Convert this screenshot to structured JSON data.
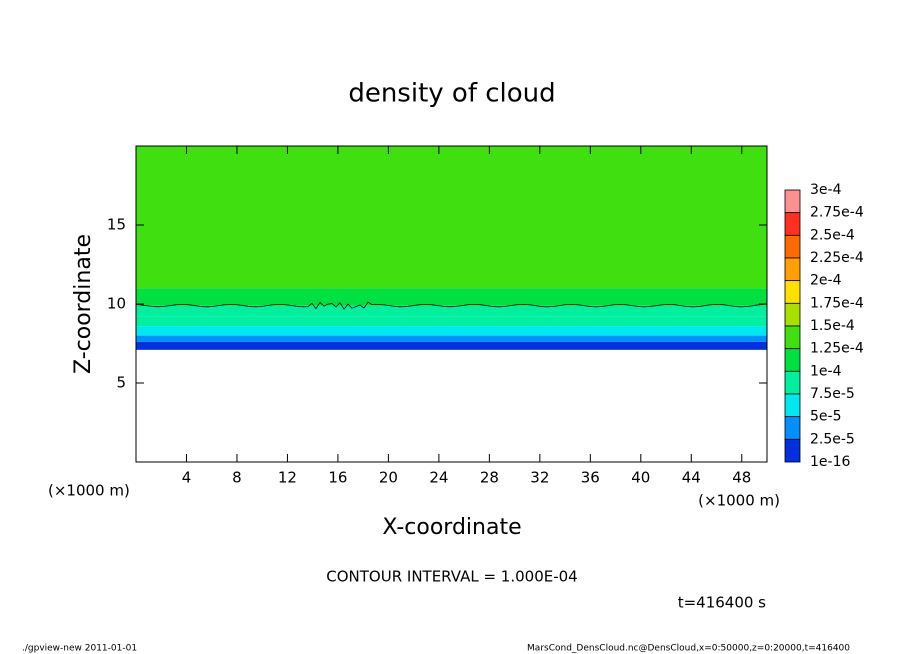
{
  "chart_data": {
    "type": "contour",
    "title": "density of cloud",
    "x_label": "X-coordinate",
    "y_label": "Z-coordinate",
    "x_unit": "(×1000 m)",
    "y_unit": "(×1000 m)",
    "xlim": [
      0,
      50
    ],
    "ylim": [
      0,
      20
    ],
    "xticks": [
      4,
      8,
      12,
      16,
      20,
      24,
      28,
      32,
      36,
      40,
      44,
      48
    ],
    "yticks": [
      5,
      10,
      15
    ],
    "profile": {
      "z": [
        7.1,
        7.6,
        8.0,
        8.6,
        9.2,
        9.9,
        11,
        20
      ],
      "values": [
        1e-05,
        3e-05,
        6e-05,
        8.5e-05,
        9.5e-05,
        0.00011,
        0.00014
      ]
    },
    "colorbar": {
      "levels": [
        {
          "value": 0.0003,
          "label": "3e-4"
        },
        {
          "value": 0.000275,
          "label": "2.75e-4"
        },
        {
          "value": 0.00025,
          "label": "2.5e-4"
        },
        {
          "value": 0.000225,
          "label": "2.25e-4"
        },
        {
          "value": 0.0002,
          "label": "2e-4"
        },
        {
          "value": 0.000175,
          "label": "1.75e-4"
        },
        {
          "value": 0.00015,
          "label": "1.5e-4"
        },
        {
          "value": 0.000125,
          "label": "1.25e-4"
        },
        {
          "value": 0.0001,
          "label": "1e-4"
        },
        {
          "value": 7.5e-05,
          "label": "7.5e-5"
        },
        {
          "value": 5e-05,
          "label": "5e-5"
        },
        {
          "value": 2.5e-05,
          "label": "2.5e-5"
        },
        {
          "value": 1e-16,
          "label": "1e-16"
        }
      ],
      "colors": [
        "#ff9090",
        "#ff3020",
        "#ff6a00",
        "#ffa000",
        "#ffe000",
        "#a8e000",
        "#40e010",
        "#00e040",
        "#00f0a0",
        "#00e8f0",
        "#0090ff",
        "#0030e0",
        "#7a00b0"
      ]
    },
    "contour_interval": "CONTOUR INTERVAL = 1.000E-04",
    "time_label": "t=416400 s",
    "footer_left": "./gpview-new   2011-01-01",
    "footer_right": "MarsCond_DensCloud.nc@DensCloud,x=0:50000,z=0:20000,t=416400"
  }
}
